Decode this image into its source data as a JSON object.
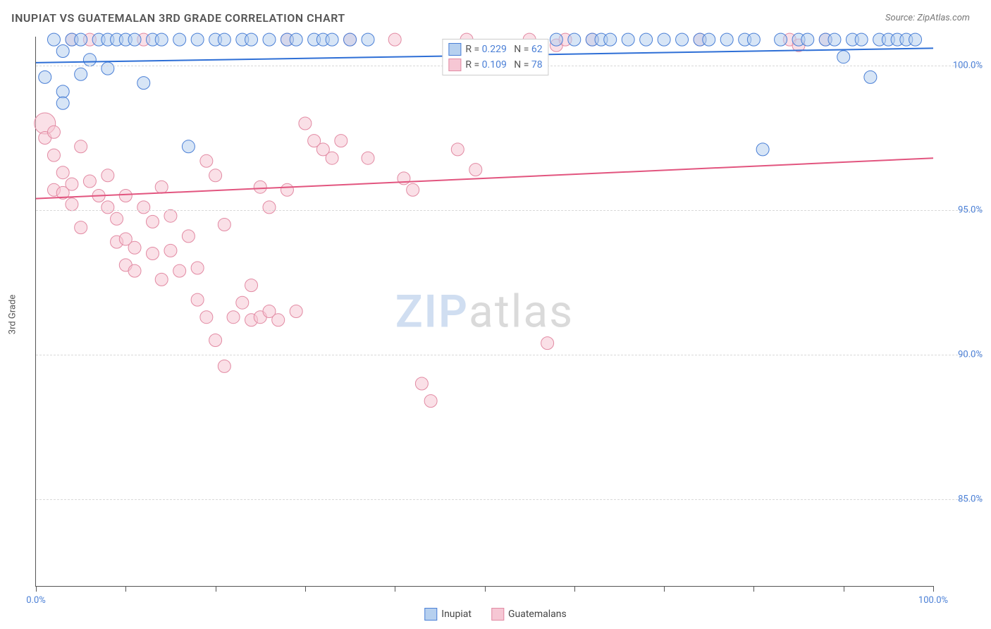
{
  "title": "INUPIAT VS GUATEMALAN 3RD GRADE CORRELATION CHART",
  "source_label": "Source: ZipAtlas.com",
  "y_axis_title": "3rd Grade",
  "watermark": {
    "part1": "ZIP",
    "part2": "atlas"
  },
  "stats_legend": {
    "r_label": "R =",
    "n_label": "N =",
    "series": [
      {
        "swatch_fill": "#b6d0ef",
        "swatch_border": "#4a7fd6",
        "r": "0.229",
        "n": "62"
      },
      {
        "swatch_fill": "#f6c7d4",
        "swatch_border": "#e28aa3",
        "r": "0.109",
        "n": "78"
      }
    ]
  },
  "bottom_legend": [
    {
      "label": "Inupiat",
      "fill": "#b6d0ef",
      "border": "#4a7fd6"
    },
    {
      "label": "Guatemalans",
      "fill": "#f6c7d4",
      "border": "#e28aa3"
    }
  ],
  "chart": {
    "type": "scatter",
    "background_color": "#ffffff",
    "grid_color": "#d9d9d9",
    "axis_color": "#555555",
    "tick_label_color": "#4a7fd6",
    "xlim": [
      0,
      100
    ],
    "ylim": [
      82,
      101
    ],
    "x_ticks": [
      0,
      10,
      20,
      30,
      40,
      50,
      60,
      70,
      80,
      90,
      100
    ],
    "x_tick_labels": {
      "0": "0.0%",
      "100": "100.0%"
    },
    "y_gridlines": [
      85,
      90,
      95,
      100
    ],
    "y_tick_labels": {
      "85": "85.0%",
      "90": "90.0%",
      "95": "95.0%",
      "100": "100.0%"
    },
    "marker_radius": 9,
    "marker_opacity": 0.55,
    "line_width": 2,
    "series": [
      {
        "name": "Inupiat",
        "fill": "#b6d0ef",
        "stroke": "#4a7fd6",
        "trend": {
          "x1": 0,
          "y1": 100.1,
          "x2": 100,
          "y2": 100.6,
          "color": "#2e6fd6"
        },
        "points": [
          {
            "x": 1,
            "y": 99.6
          },
          {
            "x": 2,
            "y": 100.9
          },
          {
            "x": 3,
            "y": 100.5
          },
          {
            "x": 3,
            "y": 99.1
          },
          {
            "x": 3,
            "y": 98.7
          },
          {
            "x": 4,
            "y": 100.9
          },
          {
            "x": 5,
            "y": 99.7
          },
          {
            "x": 5,
            "y": 100.9
          },
          {
            "x": 6,
            "y": 100.2
          },
          {
            "x": 7,
            "y": 100.9
          },
          {
            "x": 8,
            "y": 100.9
          },
          {
            "x": 8,
            "y": 99.9
          },
          {
            "x": 9,
            "y": 100.9
          },
          {
            "x": 10,
            "y": 100.9
          },
          {
            "x": 11,
            "y": 100.9
          },
          {
            "x": 12,
            "y": 99.4
          },
          {
            "x": 13,
            "y": 100.9
          },
          {
            "x": 14,
            "y": 100.9
          },
          {
            "x": 16,
            "y": 100.9
          },
          {
            "x": 17,
            "y": 97.2
          },
          {
            "x": 18,
            "y": 100.9
          },
          {
            "x": 20,
            "y": 100.9
          },
          {
            "x": 21,
            "y": 100.9
          },
          {
            "x": 23,
            "y": 100.9
          },
          {
            "x": 24,
            "y": 100.9
          },
          {
            "x": 26,
            "y": 100.9
          },
          {
            "x": 28,
            "y": 100.9
          },
          {
            "x": 29,
            "y": 100.9
          },
          {
            "x": 31,
            "y": 100.9
          },
          {
            "x": 32,
            "y": 100.9
          },
          {
            "x": 33,
            "y": 100.9
          },
          {
            "x": 35,
            "y": 100.9
          },
          {
            "x": 37,
            "y": 100.9
          },
          {
            "x": 58,
            "y": 100.9
          },
          {
            "x": 60,
            "y": 100.9
          },
          {
            "x": 62,
            "y": 100.9
          },
          {
            "x": 63,
            "y": 100.9
          },
          {
            "x": 64,
            "y": 100.9
          },
          {
            "x": 66,
            "y": 100.9
          },
          {
            "x": 68,
            "y": 100.9
          },
          {
            "x": 70,
            "y": 100.9
          },
          {
            "x": 72,
            "y": 100.9
          },
          {
            "x": 74,
            "y": 100.9
          },
          {
            "x": 75,
            "y": 100.9
          },
          {
            "x": 77,
            "y": 100.9
          },
          {
            "x": 79,
            "y": 100.9
          },
          {
            "x": 80,
            "y": 100.9
          },
          {
            "x": 81,
            "y": 97.1
          },
          {
            "x": 83,
            "y": 100.9
          },
          {
            "x": 85,
            "y": 100.9
          },
          {
            "x": 86,
            "y": 100.9
          },
          {
            "x": 88,
            "y": 100.9
          },
          {
            "x": 89,
            "y": 100.9
          },
          {
            "x": 90,
            "y": 100.3
          },
          {
            "x": 91,
            "y": 100.9
          },
          {
            "x": 92,
            "y": 100.9
          },
          {
            "x": 93,
            "y": 99.6
          },
          {
            "x": 94,
            "y": 100.9
          },
          {
            "x": 95,
            "y": 100.9
          },
          {
            "x": 96,
            "y": 100.9
          },
          {
            "x": 97,
            "y": 100.9
          },
          {
            "x": 98,
            "y": 100.9
          }
        ]
      },
      {
        "name": "Guatemalans",
        "fill": "#f6c7d4",
        "stroke": "#e28aa3",
        "trend": {
          "x1": 0,
          "y1": 95.4,
          "x2": 100,
          "y2": 96.8,
          "color": "#e2557f"
        },
        "points": [
          {
            "x": 1,
            "y": 98.0,
            "r": 15
          },
          {
            "x": 1,
            "y": 97.5
          },
          {
            "x": 2,
            "y": 96.9
          },
          {
            "x": 2,
            "y": 97.7
          },
          {
            "x": 2,
            "y": 95.7
          },
          {
            "x": 3,
            "y": 96.3
          },
          {
            "x": 3,
            "y": 95.6
          },
          {
            "x": 4,
            "y": 100.9
          },
          {
            "x": 4,
            "y": 95.9
          },
          {
            "x": 4,
            "y": 95.2
          },
          {
            "x": 5,
            "y": 97.2
          },
          {
            "x": 5,
            "y": 94.4
          },
          {
            "x": 6,
            "y": 96.0
          },
          {
            "x": 6,
            "y": 100.9
          },
          {
            "x": 7,
            "y": 95.5
          },
          {
            "x": 8,
            "y": 96.2
          },
          {
            "x": 8,
            "y": 95.1
          },
          {
            "x": 9,
            "y": 93.9
          },
          {
            "x": 9,
            "y": 94.7
          },
          {
            "x": 10,
            "y": 94.0
          },
          {
            "x": 10,
            "y": 95.5
          },
          {
            "x": 10,
            "y": 93.1
          },
          {
            "x": 11,
            "y": 93.7
          },
          {
            "x": 11,
            "y": 92.9
          },
          {
            "x": 12,
            "y": 95.1
          },
          {
            "x": 12,
            "y": 100.9
          },
          {
            "x": 13,
            "y": 94.6
          },
          {
            "x": 13,
            "y": 93.5
          },
          {
            "x": 14,
            "y": 95.8
          },
          {
            "x": 14,
            "y": 92.6
          },
          {
            "x": 15,
            "y": 94.8
          },
          {
            "x": 15,
            "y": 93.6
          },
          {
            "x": 16,
            "y": 92.9
          },
          {
            "x": 17,
            "y": 94.1
          },
          {
            "x": 18,
            "y": 91.9
          },
          {
            "x": 18,
            "y": 93.0
          },
          {
            "x": 19,
            "y": 96.7
          },
          {
            "x": 19,
            "y": 91.3
          },
          {
            "x": 20,
            "y": 96.2
          },
          {
            "x": 20,
            "y": 90.5
          },
          {
            "x": 21,
            "y": 94.5
          },
          {
            "x": 21,
            "y": 89.6
          },
          {
            "x": 22,
            "y": 91.3
          },
          {
            "x": 23,
            "y": 91.8
          },
          {
            "x": 24,
            "y": 91.2
          },
          {
            "x": 24,
            "y": 92.4
          },
          {
            "x": 25,
            "y": 91.3
          },
          {
            "x": 25,
            "y": 95.8
          },
          {
            "x": 26,
            "y": 95.1
          },
          {
            "x": 26,
            "y": 91.5
          },
          {
            "x": 27,
            "y": 91.2
          },
          {
            "x": 28,
            "y": 100.9
          },
          {
            "x": 28,
            "y": 95.7
          },
          {
            "x": 29,
            "y": 91.5
          },
          {
            "x": 30,
            "y": 98.0
          },
          {
            "x": 31,
            "y": 97.4
          },
          {
            "x": 32,
            "y": 97.1
          },
          {
            "x": 33,
            "y": 96.8
          },
          {
            "x": 34,
            "y": 97.4
          },
          {
            "x": 35,
            "y": 100.9
          },
          {
            "x": 37,
            "y": 96.8
          },
          {
            "x": 40,
            "y": 100.9
          },
          {
            "x": 41,
            "y": 96.1
          },
          {
            "x": 42,
            "y": 95.7
          },
          {
            "x": 43,
            "y": 89.0
          },
          {
            "x": 44,
            "y": 88.4
          },
          {
            "x": 47,
            "y": 97.1
          },
          {
            "x": 48,
            "y": 100.9
          },
          {
            "x": 49,
            "y": 96.4
          },
          {
            "x": 55,
            "y": 100.9
          },
          {
            "x": 57,
            "y": 90.4
          },
          {
            "x": 58,
            "y": 100.7
          },
          {
            "x": 59,
            "y": 100.9
          },
          {
            "x": 62,
            "y": 100.9
          },
          {
            "x": 74,
            "y": 100.9
          },
          {
            "x": 84,
            "y": 100.9
          },
          {
            "x": 85,
            "y": 100.7
          },
          {
            "x": 88,
            "y": 100.9
          }
        ]
      }
    ]
  }
}
